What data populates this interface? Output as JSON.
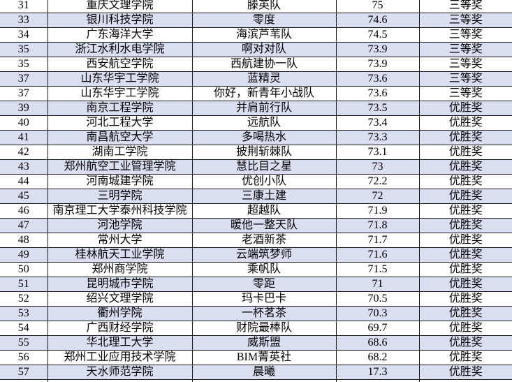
{
  "table": {
    "description": "competition results ranking table",
    "column_keys": [
      "rank",
      "university",
      "team",
      "score",
      "award"
    ],
    "rows": [
      [
        "31",
        "重庆文理学院",
        "滕英队",
        "75",
        "三等奖"
      ],
      [
        "33",
        "银川科技学院",
        "零度",
        "74.6",
        "三等奖"
      ],
      [
        "34",
        "广东海洋大学",
        "海滨芦苇队",
        "74.5",
        "三等奖"
      ],
      [
        "35",
        "浙江水利水电学院",
        "啊对对队",
        "73.9",
        "三等奖"
      ],
      [
        "35",
        "西安航空学院",
        "西航建协一队",
        "73.9",
        "三等奖"
      ],
      [
        "37",
        "山东华宇工学院",
        "蓝精灵",
        "73.6",
        "三等奖"
      ],
      [
        "37",
        "山东华宇工学院",
        "你好，新青年小战队",
        "73.6",
        "三等奖"
      ],
      [
        "39",
        "南京工程学院",
        "并肩前行队",
        "73.5",
        "优胜奖"
      ],
      [
        "40",
        "河北工程大学",
        "远航队",
        "73.4",
        "优胜奖"
      ],
      [
        "41",
        "南昌航空大学",
        "多喝热水",
        "73.3",
        "优胜奖"
      ],
      [
        "42",
        "湖南工学院",
        "披荆斩棘队",
        "73.1",
        "优胜奖"
      ],
      [
        "43",
        "郑州航空工业管理学院",
        "慧比目之星",
        "73",
        "优胜奖"
      ],
      [
        "44",
        "河南城建学院",
        "优创小队",
        "72.2",
        "优胜奖"
      ],
      [
        "45",
        "三明学院",
        "三康土建",
        "72",
        "优胜奖"
      ],
      [
        "46",
        "南京理工大学泰州科技学院",
        "超越队",
        "71.9",
        "优胜奖"
      ],
      [
        "47",
        "河池学院",
        "暖他一整天队",
        "71.8",
        "优胜奖"
      ],
      [
        "48",
        "常州大学",
        "老酒新茶",
        "71.7",
        "优胜奖"
      ],
      [
        "49",
        "桂林航天工业学院",
        "云端筑梦师",
        "71.6",
        "优胜奖"
      ],
      [
        "50",
        "郑州商学院",
        "乘帆队",
        "71.5",
        "优胜奖"
      ],
      [
        "51",
        "昆明城市学院",
        "零距",
        "71",
        "优胜奖"
      ],
      [
        "52",
        "绍兴文理学院",
        "玛卡巴卡",
        "70.5",
        "优胜奖"
      ],
      [
        "53",
        "衢州学院",
        "一杯茗茶",
        "70.3",
        "优胜奖"
      ],
      [
        "54",
        "广西财经学院",
        "财院最棒队",
        "69.7",
        "优胜奖"
      ],
      [
        "55",
        "华北理工大学",
        "威斯盟",
        "68.6",
        "优胜奖"
      ],
      [
        "56",
        "郑州工业应用技术学院",
        "BIM菁英社",
        "68.2",
        "优胜奖"
      ],
      [
        "57",
        "天水师范学院",
        "晨曦",
        "17.3",
        "优胜奖"
      ]
    ],
    "award_values_visible": [
      "三等奖",
      "优胜奖"
    ],
    "colors": {
      "band": "#d9def1",
      "row_bg": "#ffffff",
      "border": "#1a1a1a",
      "text": "#000000"
    }
  }
}
